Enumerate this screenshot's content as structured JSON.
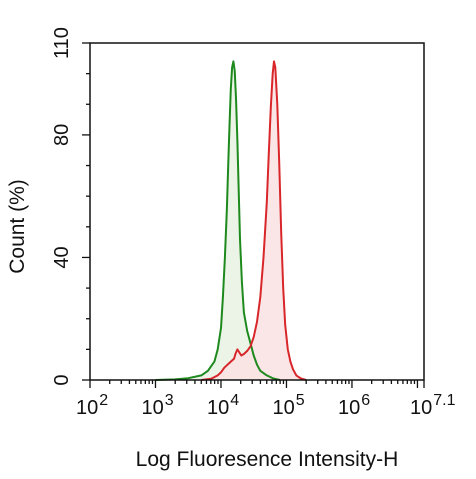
{
  "chart_data": {
    "type": "area",
    "title": "",
    "xlabel": "Log Fluoresence Intensity-H",
    "ylabel": "Count  (%)",
    "xscale": "log",
    "xlim": [
      2,
      7.1
    ],
    "ylim": [
      0,
      110
    ],
    "xticks": [
      {
        "exp": 2,
        "base": "10",
        "sup": "2"
      },
      {
        "exp": 3,
        "base": "10",
        "sup": "3"
      },
      {
        "exp": 4,
        "base": "10",
        "sup": "4"
      },
      {
        "exp": 5,
        "base": "10",
        "sup": "5"
      },
      {
        "exp": 6,
        "base": "10",
        "sup": "6"
      },
      {
        "exp": 7.1,
        "base": "10",
        "sup": "7.1"
      }
    ],
    "yticks": [
      {
        "value": 0,
        "label": "0"
      },
      {
        "value": 40,
        "label": "40"
      },
      {
        "value": 80,
        "label": "80"
      },
      {
        "value": 110,
        "label": "110"
      }
    ],
    "grid": false,
    "series": [
      {
        "color": "#1e8a1e",
        "fill": "#e8f2e2",
        "points": [
          [
            3.0,
            0
          ],
          [
            3.3,
            0.2
          ],
          [
            3.5,
            0.6
          ],
          [
            3.7,
            1.5
          ],
          [
            3.8,
            3
          ],
          [
            3.9,
            6
          ],
          [
            3.95,
            10
          ],
          [
            4.0,
            17
          ],
          [
            4.03,
            27
          ],
          [
            4.06,
            40
          ],
          [
            4.09,
            56
          ],
          [
            4.11,
            70
          ],
          [
            4.13,
            83
          ],
          [
            4.15,
            95
          ],
          [
            4.17,
            102
          ],
          [
            4.19,
            104
          ],
          [
            4.21,
            101
          ],
          [
            4.23,
            92
          ],
          [
            4.25,
            78
          ],
          [
            4.27,
            62
          ],
          [
            4.29,
            46
          ],
          [
            4.32,
            32
          ],
          [
            4.35,
            22
          ],
          [
            4.4,
            16
          ],
          [
            4.45,
            12
          ],
          [
            4.5,
            8
          ],
          [
            4.55,
            5
          ],
          [
            4.6,
            3
          ],
          [
            4.7,
            1.5
          ],
          [
            4.8,
            0.5
          ],
          [
            4.9,
            0
          ]
        ]
      },
      {
        "color": "#d8262a",
        "fill": "#fae2e3",
        "points": [
          [
            3.7,
            0
          ],
          [
            3.85,
            0.4
          ],
          [
            3.95,
            1.5
          ],
          [
            4.0,
            2.5
          ],
          [
            4.05,
            4
          ],
          [
            4.1,
            5
          ],
          [
            4.15,
            6
          ],
          [
            4.2,
            7
          ],
          [
            4.22,
            8.5
          ],
          [
            4.25,
            10
          ],
          [
            4.28,
            9
          ],
          [
            4.31,
            8
          ],
          [
            4.35,
            8.5
          ],
          [
            4.4,
            9.5
          ],
          [
            4.45,
            11
          ],
          [
            4.5,
            14
          ],
          [
            4.55,
            19
          ],
          [
            4.6,
            27
          ],
          [
            4.65,
            40
          ],
          [
            4.7,
            58
          ],
          [
            4.73,
            74
          ],
          [
            4.76,
            89
          ],
          [
            4.79,
            100
          ],
          [
            4.81,
            104
          ],
          [
            4.83,
            102
          ],
          [
            4.86,
            90
          ],
          [
            4.89,
            70
          ],
          [
            4.92,
            48
          ],
          [
            4.95,
            30
          ],
          [
            4.98,
            18
          ],
          [
            5.02,
            10
          ],
          [
            5.06,
            6
          ],
          [
            5.1,
            3.5
          ],
          [
            5.15,
            1.5
          ],
          [
            5.22,
            0.5
          ],
          [
            5.3,
            0
          ]
        ]
      }
    ]
  }
}
